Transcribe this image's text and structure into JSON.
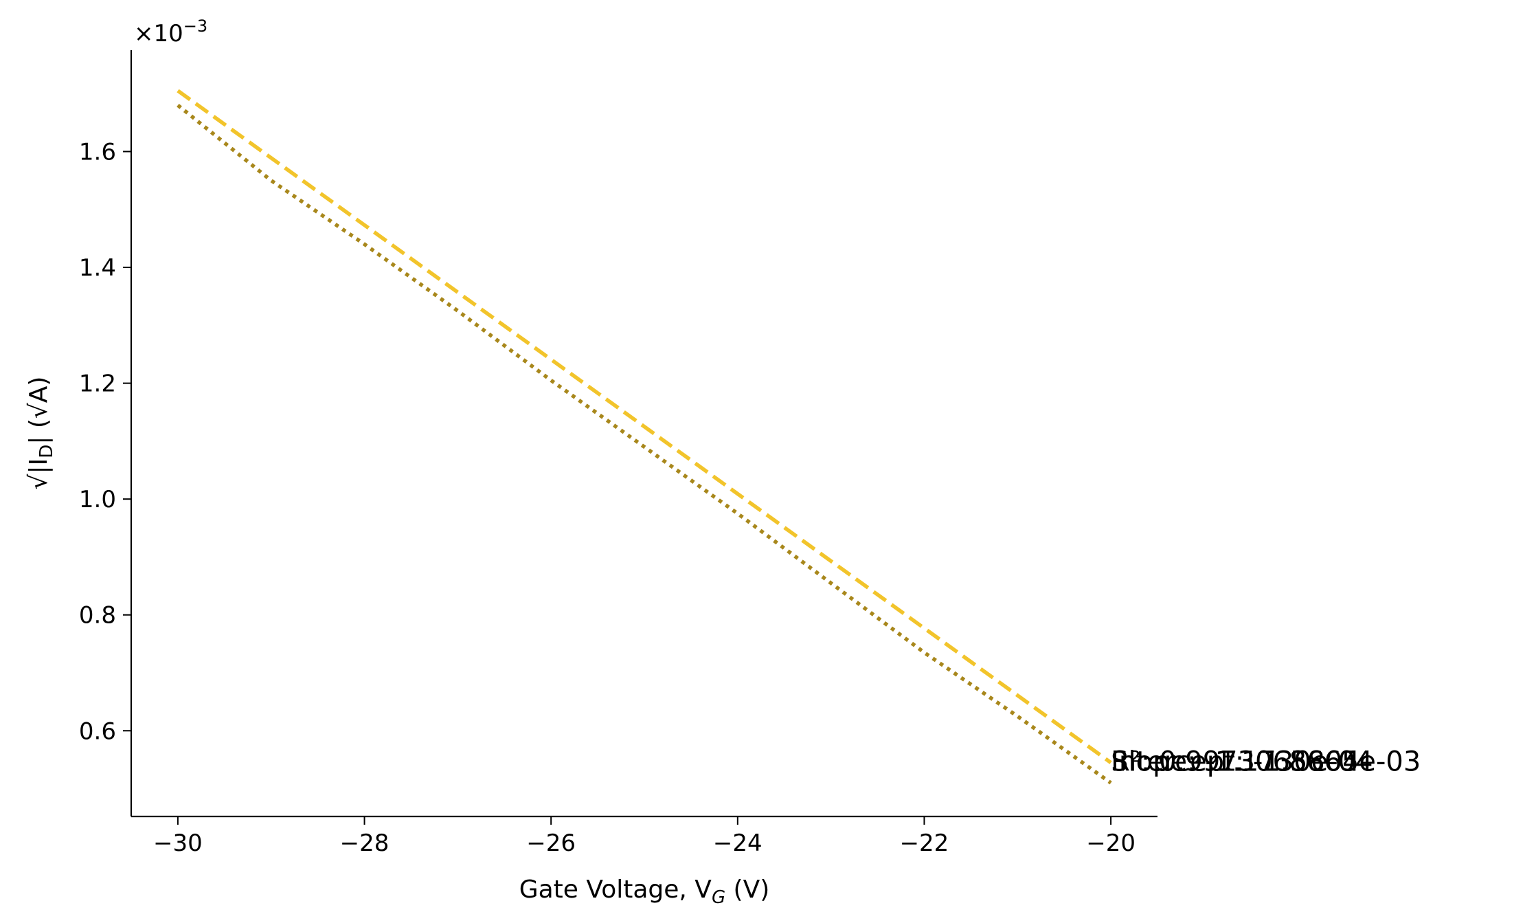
{
  "chart_data": {
    "type": "line",
    "title": "",
    "xlabel": {
      "main": "Gate Voltage, V",
      "sub": "G",
      "suffix": " (V)"
    },
    "ylabel": "√|I_D| (√A)",
    "ylabel_parts": {
      "prefix": "√|I",
      "sub": "D",
      "suffix": "| (√A)"
    },
    "offset_label": {
      "base": "×10",
      "exp": "−3"
    },
    "x_scale_unit": 1,
    "y_scale_unit": 0.001,
    "xlim": [
      -30.5,
      -19.5
    ],
    "ylim": [
      0.000452,
      0.001775
    ],
    "xticks": [
      -30,
      -28,
      -26,
      -24,
      -22,
      -20
    ],
    "xtick_labels": [
      "−30",
      "−28",
      "−26",
      "−24",
      "−22",
      "−20"
    ],
    "yticks": [
      0.0006,
      0.0008,
      0.001,
      0.0012,
      0.0014,
      0.0016
    ],
    "ytick_labels": [
      "0.6",
      "0.8",
      "1.0",
      "1.2",
      "1.4",
      "1.6"
    ],
    "grid": false,
    "series": [
      {
        "style": "dashed",
        "color": "#f2c42b",
        "x": [
          -30,
          -20
        ],
        "y": [
          0.001705,
          0.000545
        ]
      },
      {
        "style": "dotted",
        "color": "#a8871b",
        "x": [
          -30,
          -29,
          -28,
          -27,
          -26,
          -25,
          -24,
          -23,
          -22,
          -21,
          -20
        ],
        "y": [
          0.00168,
          0.00155,
          0.00144,
          0.001325,
          0.001205,
          0.00109,
          0.000975,
          0.000855,
          0.000735,
          0.000625,
          0.00051
        ]
      }
    ],
    "annotations": [
      {
        "text": "Slope: -1.1730e-04"
      },
      {
        "text": "Intercept: -1.8665e-03"
      },
      {
        "text": "R²: 0.9973065804"
      }
    ]
  }
}
